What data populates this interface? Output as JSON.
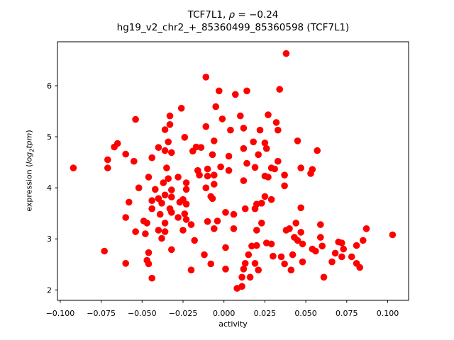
{
  "chart_data": {
    "type": "scatter",
    "title_line1_segments": [
      {
        "text": "TCF7L1, ",
        "italic": false
      },
      {
        "text": "ρ",
        "italic": true
      },
      {
        "text": " = −0.24",
        "italic": false
      }
    ],
    "title_line2": "hg19_v2_chr2_+_85360499_85360598 (TCF7L1)",
    "xlabel": "activity",
    "ylabel_segments": [
      {
        "text": "expression (",
        "italic": false
      },
      {
        "text": "log",
        "italic": true
      },
      {
        "text": "2",
        "italic": true,
        "sub": true
      },
      {
        "text": "tpm",
        "italic": true
      },
      {
        "text": ")",
        "italic": false
      }
    ],
    "legend": null,
    "grid": false,
    "marker": {
      "color": "#ff0000",
      "radius": 4.8
    },
    "axis_color": "#000000",
    "xlim": [
      -0.1017,
      0.1128
    ],
    "ylim": [
      1.796,
      6.861
    ],
    "xticks": [
      {
        "v": -0.1,
        "label": "−0.100"
      },
      {
        "v": -0.075,
        "label": "−0.075"
      },
      {
        "v": -0.05,
        "label": "−0.050"
      },
      {
        "v": -0.025,
        "label": "−0.025"
      },
      {
        "v": 0.0,
        "label": "0.000"
      },
      {
        "v": 0.025,
        "label": "0.025"
      },
      {
        "v": 0.05,
        "label": "0.050"
      },
      {
        "v": 0.075,
        "label": "0.075"
      },
      {
        "v": 0.1,
        "label": "0.100"
      }
    ],
    "yticks": [
      {
        "v": 2,
        "label": "2"
      },
      {
        "v": 3,
        "label": "3"
      },
      {
        "v": 4,
        "label": "4"
      },
      {
        "v": 5,
        "label": "5"
      },
      {
        "v": 6,
        "label": "6"
      }
    ],
    "points": [
      [
        -0.092,
        4.39
      ],
      [
        -0.011,
        6.17
      ],
      [
        -0.003,
        5.9
      ],
      [
        -0.026,
        5.56
      ],
      [
        -0.005,
        5.59
      ],
      [
        -0.054,
        5.34
      ],
      [
        -0.033,
        5.41
      ],
      [
        -0.033,
        5.24
      ],
      [
        -0.001,
        5.35
      ],
      [
        -0.011,
        5.2
      ],
      [
        0.007,
        5.83
      ],
      [
        -0.036,
        5.14
      ],
      [
        -0.024,
        4.99
      ],
      [
        0.004,
        5.13
      ],
      [
        -0.065,
        4.87
      ],
      [
        -0.067,
        4.8
      ],
      [
        -0.034,
        4.9
      ],
      [
        -0.04,
        4.79
      ],
      [
        -0.036,
        4.73
      ],
      [
        -0.017,
        4.8
      ],
      [
        -0.019,
        4.72
      ],
      [
        -0.014,
        4.79
      ],
      [
        -0.006,
        4.92
      ],
      [
        -0.06,
        4.66
      ],
      [
        -0.032,
        4.69
      ],
      [
        -0.007,
        4.65
      ],
      [
        -0.071,
        4.55
      ],
      [
        -0.055,
        4.52
      ],
      [
        -0.044,
        4.59
      ],
      [
        0.003,
        4.62
      ],
      [
        -0.071,
        4.39
      ],
      [
        -0.035,
        4.39
      ],
      [
        -0.016,
        4.34
      ],
      [
        -0.01,
        4.37
      ],
      [
        -0.002,
        4.41
      ],
      [
        0.003,
        4.34
      ],
      [
        0.038,
        6.63
      ],
      [
        0.014,
        5.9
      ],
      [
        0.034,
        5.93
      ],
      [
        0.01,
        5.41
      ],
      [
        0.027,
        5.43
      ],
      [
        0.012,
        5.17
      ],
      [
        0.032,
        5.28
      ],
      [
        0.022,
        5.13
      ],
      [
        0.033,
        5.13
      ],
      [
        0.018,
        4.9
      ],
      [
        0.025,
        4.88
      ],
      [
        0.026,
        4.77
      ],
      [
        0.012,
        4.77
      ],
      [
        0.045,
        4.92
      ],
      [
        0.021,
        4.65
      ],
      [
        0.057,
        4.73
      ],
      [
        0.014,
        4.48
      ],
      [
        0.019,
        4.4
      ],
      [
        0.033,
        4.52
      ],
      [
        0.029,
        4.39
      ],
      [
        0.031,
        4.37
      ],
      [
        0.047,
        4.39
      ],
      [
        0.054,
        4.36
      ],
      [
        -0.046,
        4.21
      ],
      [
        -0.034,
        4.18
      ],
      [
        -0.028,
        4.21
      ],
      [
        -0.015,
        4.25
      ],
      [
        -0.01,
        4.23
      ],
      [
        -0.006,
        4.25
      ],
      [
        -0.052,
        4.0
      ],
      [
        -0.042,
        3.97
      ],
      [
        -0.037,
        4.1
      ],
      [
        -0.023,
        4.1
      ],
      [
        -0.032,
        3.96
      ],
      [
        -0.023,
        3.97
      ],
      [
        -0.011,
        4.0
      ],
      [
        -0.006,
        4.07
      ],
      [
        -0.058,
        3.72
      ],
      [
        -0.044,
        3.75
      ],
      [
        -0.04,
        3.79
      ],
      [
        -0.038,
        3.7
      ],
      [
        -0.036,
        3.86
      ],
      [
        -0.032,
        3.82
      ],
      [
        -0.027,
        3.72
      ],
      [
        -0.025,
        3.77
      ],
      [
        -0.023,
        3.68
      ],
      [
        -0.008,
        3.83
      ],
      [
        -0.007,
        3.79
      ],
      [
        -0.06,
        3.42
      ],
      [
        -0.049,
        3.35
      ],
      [
        -0.047,
        3.31
      ],
      [
        -0.044,
        3.59
      ],
      [
        -0.039,
        3.48
      ],
      [
        -0.036,
        3.31
      ],
      [
        -0.033,
        3.59
      ],
      [
        -0.032,
        3.52
      ],
      [
        -0.028,
        3.42
      ],
      [
        -0.024,
        3.49
      ],
      [
        -0.023,
        3.38
      ],
      [
        -0.02,
        3.28
      ],
      [
        -0.01,
        3.34
      ],
      [
        -0.004,
        3.35
      ],
      [
        0.001,
        3.52
      ],
      [
        -0.054,
        3.14
      ],
      [
        -0.048,
        3.1
      ],
      [
        -0.04,
        3.17
      ],
      [
        -0.036,
        3.14
      ],
      [
        -0.038,
        3.01
      ],
      [
        -0.025,
        3.17
      ],
      [
        -0.018,
        2.97
      ],
      [
        -0.006,
        3.2
      ],
      [
        0.006,
        3.2
      ],
      [
        -0.073,
        2.76
      ],
      [
        -0.046,
        2.73
      ],
      [
        -0.032,
        2.79
      ],
      [
        -0.012,
        2.69
      ],
      [
        0.001,
        2.83
      ],
      [
        -0.06,
        2.52
      ],
      [
        -0.047,
        2.58
      ],
      [
        -0.046,
        2.51
      ],
      [
        -0.008,
        2.51
      ],
      [
        0.001,
        2.41
      ],
      [
        -0.02,
        2.39
      ],
      [
        -0.044,
        2.23
      ],
      [
        0.012,
        4.14
      ],
      [
        0.025,
        4.23
      ],
      [
        0.027,
        4.21
      ],
      [
        0.037,
        4.25
      ],
      [
        0.053,
        4.28
      ],
      [
        0.037,
        4.04
      ],
      [
        0.025,
        3.83
      ],
      [
        0.029,
        3.77
      ],
      [
        0.02,
        3.68
      ],
      [
        0.023,
        3.7
      ],
      [
        0.013,
        3.59
      ],
      [
        0.019,
        3.59
      ],
      [
        0.006,
        3.48
      ],
      [
        0.047,
        3.61
      ],
      [
        0.023,
        3.31
      ],
      [
        0.044,
        3.31
      ],
      [
        0.059,
        3.28
      ],
      [
        0.02,
        3.17
      ],
      [
        0.038,
        3.17
      ],
      [
        0.04,
        3.2
      ],
      [
        0.043,
        3.03
      ],
      [
        0.047,
        3.13
      ],
      [
        0.059,
        3.03
      ],
      [
        0.087,
        3.2
      ],
      [
        0.103,
        3.08
      ],
      [
        0.017,
        2.86
      ],
      [
        0.02,
        2.87
      ],
      [
        0.026,
        2.92
      ],
      [
        0.029,
        2.9
      ],
      [
        0.045,
        2.97
      ],
      [
        0.048,
        2.9
      ],
      [
        0.054,
        2.8
      ],
      [
        0.056,
        2.76
      ],
      [
        0.06,
        2.86
      ],
      [
        0.07,
        2.94
      ],
      [
        0.072,
        2.92
      ],
      [
        0.073,
        2.8
      ],
      [
        0.081,
        2.87
      ],
      [
        0.085,
        2.97
      ],
      [
        0.015,
        2.69
      ],
      [
        0.03,
        2.66
      ],
      [
        0.035,
        2.65
      ],
      [
        0.042,
        2.69
      ],
      [
        0.068,
        2.72
      ],
      [
        0.072,
        2.65
      ],
      [
        0.078,
        2.65
      ],
      [
        0.013,
        2.52
      ],
      [
        0.019,
        2.52
      ],
      [
        0.037,
        2.51
      ],
      [
        0.041,
        2.39
      ],
      [
        0.048,
        2.55
      ],
      [
        0.066,
        2.55
      ],
      [
        0.081,
        2.52
      ],
      [
        0.083,
        2.44
      ],
      [
        0.012,
        2.41
      ],
      [
        0.021,
        2.39
      ],
      [
        0.011,
        2.25
      ],
      [
        0.016,
        2.25
      ],
      [
        0.061,
        2.25
      ],
      [
        0.008,
        2.03
      ],
      [
        0.011,
        2.07
      ]
    ]
  }
}
